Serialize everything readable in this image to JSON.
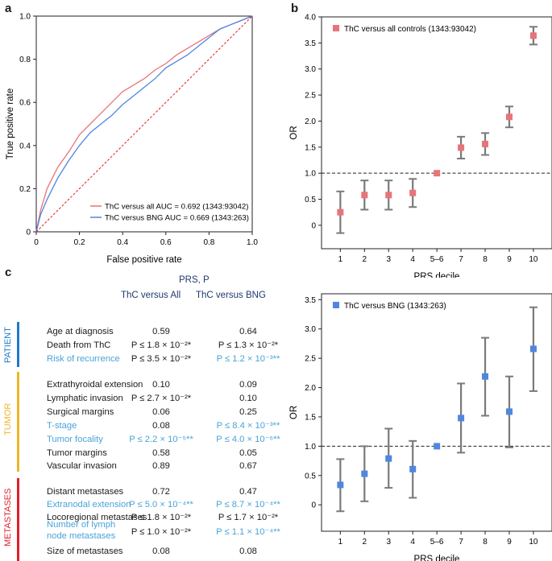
{
  "panels": {
    "a": "a",
    "b": "b",
    "c": "c"
  },
  "roc": {
    "xlabel": "False positive rate",
    "ylabel": "True positive rate",
    "ticks": [
      "0",
      "0.2",
      "0.4",
      "0.6",
      "0.8",
      "1.0"
    ],
    "legend": [
      {
        "label": "ThC versus all AUC = 0.692 (1343:93042)",
        "color": "#e8737a"
      },
      {
        "label": "ThC versus BNG AUC = 0.669 (1343:263)",
        "color": "#4f86e0"
      }
    ]
  },
  "chart_data": [
    {
      "type": "line",
      "title": "",
      "xlabel": "False positive rate",
      "ylabel": "True positive rate",
      "xlim": [
        0,
        1
      ],
      "ylim": [
        0,
        1
      ],
      "series": [
        {
          "name": "ThC versus all AUC = 0.692 (1343:93042)",
          "color": "#e8737a",
          "x": [
            0,
            0.02,
            0.05,
            0.1,
            0.15,
            0.2,
            0.25,
            0.3,
            0.35,
            0.4,
            0.45,
            0.5,
            0.55,
            0.6,
            0.65,
            0.7,
            0.75,
            0.8,
            0.85,
            0.9,
            0.95,
            1.0
          ],
          "y": [
            0,
            0.1,
            0.2,
            0.3,
            0.37,
            0.45,
            0.5,
            0.55,
            0.6,
            0.65,
            0.68,
            0.71,
            0.75,
            0.78,
            0.82,
            0.85,
            0.88,
            0.91,
            0.94,
            0.96,
            0.98,
            1.0
          ]
        },
        {
          "name": "ThC versus BNG AUC = 0.669 (1343:263)",
          "color": "#4f86e0",
          "x": [
            0,
            0.02,
            0.05,
            0.1,
            0.15,
            0.2,
            0.25,
            0.3,
            0.35,
            0.4,
            0.45,
            0.5,
            0.55,
            0.6,
            0.65,
            0.7,
            0.75,
            0.8,
            0.85,
            0.9,
            0.95,
            1.0
          ],
          "y": [
            0,
            0.08,
            0.15,
            0.25,
            0.33,
            0.4,
            0.46,
            0.5,
            0.54,
            0.59,
            0.63,
            0.67,
            0.71,
            0.76,
            0.79,
            0.82,
            0.86,
            0.9,
            0.94,
            0.96,
            0.98,
            1.0
          ]
        },
        {
          "name": "chance",
          "color": "#e02020",
          "style": "dashed",
          "x": [
            0,
            1
          ],
          "y": [
            0,
            1
          ]
        }
      ]
    },
    {
      "type": "scatter",
      "title": "ThC versus all controls (1343:93042)",
      "xlabel": "PRS decile",
      "ylabel": "OR",
      "color": "#e8737a",
      "categories": [
        "1",
        "2",
        "3",
        "4",
        "5–6",
        "7",
        "8",
        "9",
        "10"
      ],
      "values": [
        0.25,
        0.58,
        0.58,
        0.62,
        1.0,
        1.49,
        1.56,
        2.08,
        3.64
      ],
      "lower": [
        -0.15,
        0.3,
        0.3,
        0.35,
        1.0,
        1.28,
        1.35,
        1.88,
        3.47
      ],
      "upper": [
        0.65,
        0.86,
        0.86,
        0.89,
        1.0,
        1.7,
        1.77,
        2.28,
        3.81
      ],
      "reference": 1.0,
      "ylim": [
        -0.45,
        4.0
      ],
      "yticks": [
        "0",
        "0.5",
        "1.0",
        "1.5",
        "2.0",
        "2.5",
        "3.0",
        "3.5",
        "4.0"
      ]
    },
    {
      "type": "scatter",
      "title": "ThC versus BNG (1343:263)",
      "xlabel": "PRS decile",
      "ylabel": "OR",
      "color": "#4f86e0",
      "categories": [
        "1",
        "2",
        "3",
        "4",
        "5–6",
        "7",
        "8",
        "9",
        "10"
      ],
      "values": [
        0.34,
        0.53,
        0.79,
        0.61,
        1.0,
        1.48,
        2.19,
        1.59,
        2.66
      ],
      "lower": [
        -0.11,
        0.06,
        0.29,
        0.12,
        1.0,
        0.89,
        1.52,
        0.98,
        1.94
      ],
      "upper": [
        0.78,
        1.0,
        1.3,
        1.09,
        1.0,
        2.07,
        2.85,
        2.19,
        3.37
      ],
      "reference": 1.0,
      "ylim": [
        -0.45,
        3.6
      ],
      "yticks": [
        "0",
        "0.5",
        "1.0",
        "1.5",
        "2.0",
        "2.5",
        "3.0",
        "3.5"
      ]
    }
  ],
  "table": {
    "header": "PRS, P",
    "col1": "ThC versus All",
    "col2": "ThC versus BNG",
    "groups": [
      {
        "name": "PATIENT",
        "color": "#1f78c8"
      },
      {
        "name": "TUMOR",
        "color": "#f0b429"
      },
      {
        "name": "METASTASES",
        "color": "#e0202c"
      }
    ],
    "rows": [
      {
        "label": "Age at diagnosis",
        "v1": "0.59",
        "v2": "0.64",
        "sig": false
      },
      {
        "label": "Death from ThC",
        "v1": "P ≤ 1.8 × 10⁻²*",
        "v2": "P ≤ 1.3 × 10⁻²*",
        "sig": false
      },
      {
        "label": "Risk of recurrence",
        "v1": "P ≤ 3.5 × 10⁻²*",
        "v2": "P ≤ 1.2 × 10⁻³**",
        "sig": true,
        "v1color": "dark"
      },
      {
        "label": "Extrathyroidal extension",
        "v1": "0.10",
        "v2": "0.09",
        "sig": false
      },
      {
        "label": "Lymphatic invasion",
        "v1": "P ≤ 2.7 × 10⁻²*",
        "v2": "0.10",
        "sig": false
      },
      {
        "label": "Surgical margins",
        "v1": "0.06",
        "v2": "0.25",
        "sig": false
      },
      {
        "label": "T-stage",
        "v1": "0.08",
        "v2": "P ≤ 8.4 × 10⁻³**",
        "sig": true,
        "v1color": "dark"
      },
      {
        "label": "Tumor focality",
        "v1": "P ≤ 2.2 × 10⁻⁵**",
        "v2": "P ≤ 4.0 × 10⁻⁶**",
        "sig": true
      },
      {
        "label": "Tumor margins",
        "v1": "0.58",
        "v2": "0.05",
        "sig": false
      },
      {
        "label": "Vascular invasion",
        "v1": "0.89",
        "v2": "0.67",
        "sig": false
      },
      {
        "label": "Distant metastases",
        "v1": "0.72",
        "v2": "0.47",
        "sig": false
      },
      {
        "label": "Extranodal extension",
        "v1": "P ≤ 5.0 × 10⁻⁴**",
        "v2": "P ≤ 8.7 × 10⁻⁴**",
        "sig": true
      },
      {
        "label": "Locoregional metastases",
        "v1": "P ≤ 1.8 × 10⁻²*",
        "v2": "P ≤ 1.7 × 10⁻²*",
        "sig": false
      },
      {
        "label": "Number of lymph node metastases",
        "v1": "P ≤ 1.0 × 10⁻²*",
        "v2": "P ≤ 1.1 × 10⁻⁴**",
        "sig": true,
        "v1color": "dark"
      },
      {
        "label": "Size of metastases",
        "v1": "0.08",
        "v2": "0.08",
        "sig": false
      }
    ]
  }
}
